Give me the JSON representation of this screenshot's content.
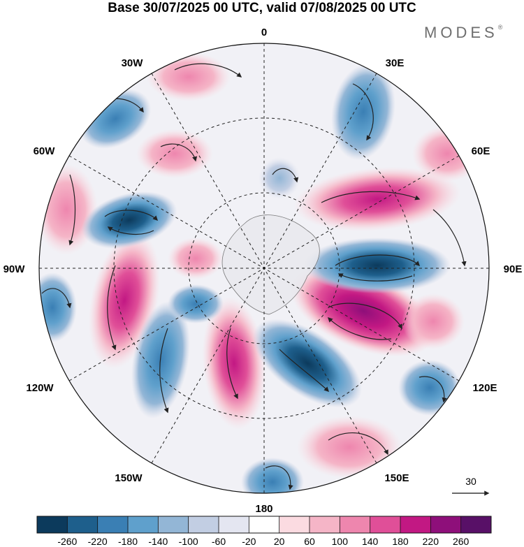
{
  "title": "Base 30/07/2025 00 UTC, valid 07/08/2025 00 UTC",
  "brand": {
    "name": "MODES",
    "mark": "®"
  },
  "map": {
    "projection": "south polar stereographic",
    "longitude_labels": {
      "top": "0",
      "bottom": "180",
      "left": "90W",
      "right": "90E",
      "upper_left_1": "30W",
      "upper_left_2": "60W",
      "upper_right_1": "30E",
      "upper_right_2": "60E",
      "lower_left_1": "120W",
      "lower_left_2": "150W",
      "lower_right_1": "120E",
      "lower_right_2": "150E"
    }
  },
  "reference_vector": {
    "label": "30"
  },
  "colorbar": {
    "colors": [
      "#0c3a5c",
      "#1e5f8c",
      "#3a7fb4",
      "#5fa0cc",
      "#93b6d6",
      "#c2cee3",
      "#e4e6f1",
      "#ffffff",
      "#fbdbe1",
      "#f5b5c7",
      "#ee86ae",
      "#e04f98",
      "#c21883",
      "#8e0f7a",
      "#581067"
    ],
    "tick_labels": [
      "-260",
      "-220",
      "-180",
      "-140",
      "-100",
      "-60",
      "-20",
      "20",
      "60",
      "100",
      "140",
      "180",
      "220",
      "260"
    ]
  }
}
